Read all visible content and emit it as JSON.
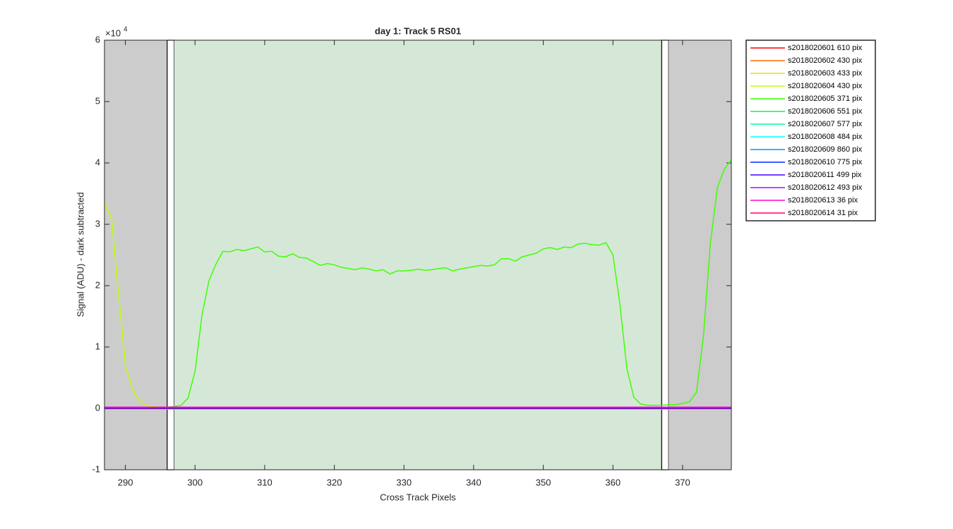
{
  "chart_data": {
    "type": "line",
    "title": "day 1: Track 5  RS01",
    "xlabel": "Cross Track Pixels",
    "ylabel": "Signal (ADU) - dark subtracted",
    "y_multiplier": "×10",
    "y_exponent": "4",
    "xlim": [
      287,
      377
    ],
    "ylim": [
      -1,
      6
    ],
    "xticks": [
      290,
      300,
      310,
      320,
      330,
      340,
      350,
      360,
      370
    ],
    "yticks": [
      -1,
      0,
      1,
      2,
      3,
      4,
      5,
      6
    ],
    "regions": [
      {
        "x0": 287,
        "x1": 296,
        "fill": "#cccccc",
        "edge": "none"
      },
      {
        "x0": 296,
        "x1": 297,
        "fill": "#ffffff",
        "edge": "#000000"
      },
      {
        "x0": 297,
        "x1": 367,
        "fill": "#d5e8d8",
        "edge": "none"
      },
      {
        "x0": 367,
        "x1": 368,
        "fill": "#ffffff",
        "edge": "#000000"
      },
      {
        "x0": 368,
        "x1": 377,
        "fill": "#cccccc",
        "edge": "none"
      }
    ],
    "legend": "outside-right",
    "series": [
      {
        "name": "s2018020601 610 pix",
        "color": "#ff0000",
        "x": [
          287,
          377
        ],
        "values": [
          0.01,
          0.01
        ]
      },
      {
        "name": "s2018020602 430 pix",
        "color": "#ff6a00",
        "x": [
          287,
          377
        ],
        "values": [
          -0.01,
          -0.01
        ]
      },
      {
        "name": "s2018020603 433 pix",
        "color": "#ffd500",
        "x": [
          287,
          377
        ],
        "values": [
          -0.01,
          -0.01
        ]
      },
      {
        "name": "s2018020604 430 pix",
        "color": "#bfff00",
        "x": [
          287,
          288,
          289,
          290,
          291,
          292,
          293,
          294,
          295,
          296,
          377
        ],
        "values": [
          3.35,
          3.1,
          1.9,
          0.7,
          0.32,
          0.13,
          0.05,
          0.03,
          0.02,
          0.02,
          0.01
        ]
      },
      {
        "name": "s2018020605 371 pix",
        "color": "#40ff00",
        "x": [
          287,
          296,
          297,
          298,
          299,
          300,
          301,
          302,
          303,
          304,
          305,
          306,
          307,
          308,
          309,
          310,
          311,
          312,
          313,
          314,
          315,
          316,
          317,
          318,
          319,
          320,
          321,
          322,
          323,
          324,
          325,
          326,
          327,
          328,
          329,
          330,
          331,
          332,
          333,
          334,
          335,
          336,
          337,
          338,
          339,
          340,
          341,
          342,
          343,
          344,
          345,
          346,
          347,
          348,
          349,
          350,
          351,
          352,
          353,
          354,
          355,
          356,
          357,
          358,
          359,
          360,
          361,
          362,
          363,
          364,
          365,
          366,
          367,
          368,
          369,
          370,
          371,
          372,
          373,
          374,
          375,
          376,
          377
        ],
        "values": [
          0.02,
          0.02,
          0.03,
          0.05,
          0.17,
          0.6,
          1.52,
          2.08,
          2.35,
          2.56,
          2.55,
          2.59,
          2.57,
          2.6,
          2.63,
          2.55,
          2.56,
          2.48,
          2.47,
          2.52,
          2.46,
          2.45,
          2.39,
          2.33,
          2.36,
          2.34,
          2.3,
          2.28,
          2.26,
          2.29,
          2.27,
          2.24,
          2.26,
          2.19,
          2.24,
          2.24,
          2.25,
          2.27,
          2.25,
          2.26,
          2.28,
          2.29,
          2.24,
          2.27,
          2.29,
          2.31,
          2.33,
          2.32,
          2.34,
          2.44,
          2.44,
          2.4,
          2.47,
          2.5,
          2.53,
          2.6,
          2.62,
          2.59,
          2.63,
          2.62,
          2.68,
          2.69,
          2.67,
          2.66,
          2.7,
          2.5,
          1.7,
          0.65,
          0.18,
          0.07,
          0.05,
          0.05,
          0.05,
          0.06,
          0.06,
          0.08,
          0.11,
          0.26,
          1.18,
          2.7,
          3.6,
          3.9,
          4.05
        ]
      },
      {
        "name": "s2018020606 551 pix",
        "color": "#00ff2b",
        "x": [
          287,
          377
        ],
        "values": [
          0.02,
          0.02
        ]
      },
      {
        "name": "s2018020607 577 pix",
        "color": "#00ff95",
        "x": [
          287,
          377
        ],
        "values": [
          0.01,
          0.01
        ]
      },
      {
        "name": "s2018020608 484 pix",
        "color": "#00ffff",
        "x": [
          287,
          377
        ],
        "values": [
          0,
          0
        ]
      },
      {
        "name": "s2018020609 860 pix",
        "color": "#0095ff",
        "x": [
          287,
          377
        ],
        "values": [
          0,
          0
        ]
      },
      {
        "name": "s2018020610 775 pix",
        "color": "#002bff",
        "x": [
          287,
          377
        ],
        "values": [
          0,
          0
        ]
      },
      {
        "name": "s2018020611 499 pix",
        "color": "#4000ff",
        "x": [
          287,
          377
        ],
        "values": [
          0,
          0
        ]
      },
      {
        "name": "s2018020612 493 pix",
        "color": "#bf00ff",
        "x": [
          287,
          377
        ],
        "values": [
          0.01,
          0.01
        ]
      },
      {
        "name": "s2018020613 36 pix",
        "color": "#ff00d5",
        "x": [
          287,
          377
        ],
        "values": [
          0.02,
          0.02
        ]
      },
      {
        "name": "s2018020614 31 pix",
        "color": "#ff006a",
        "x": [
          287,
          377
        ],
        "values": [
          0.01,
          0.01
        ]
      }
    ]
  }
}
